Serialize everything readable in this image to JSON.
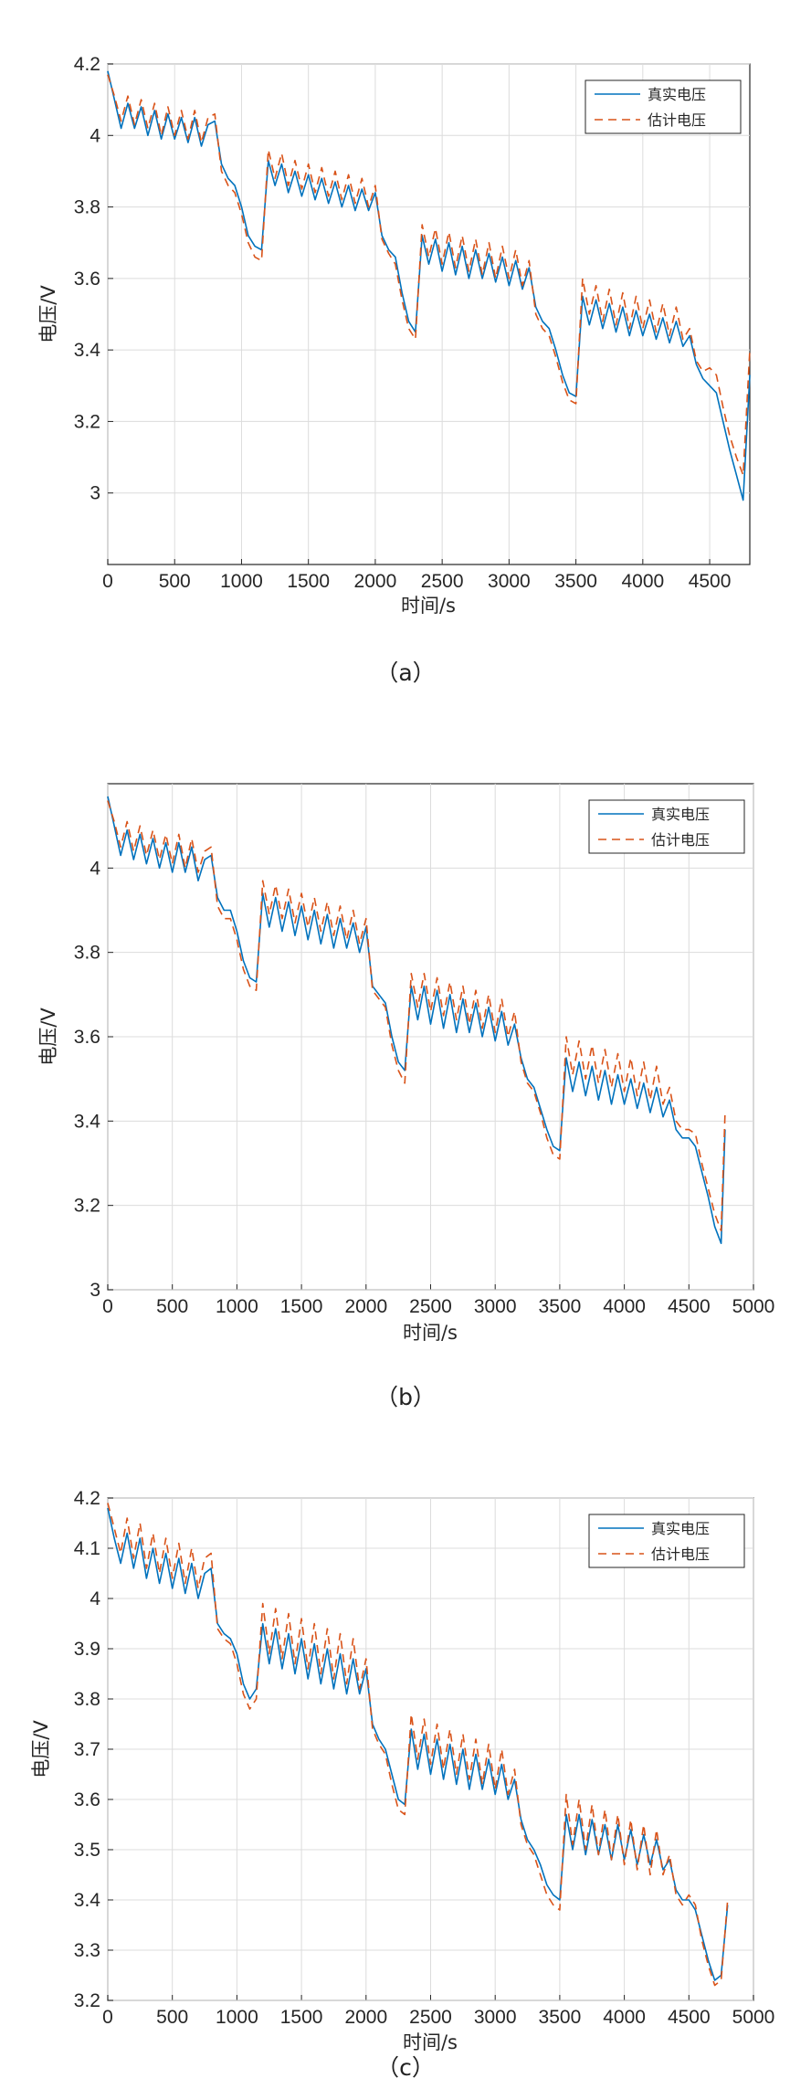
{
  "colors": {
    "real": "#0072bd",
    "est": "#d95319"
  },
  "chart_data": [
    {
      "type": "line",
      "panel": "a",
      "caption": "（a）",
      "xlabel": "时间/s",
      "ylabel": "电压/V",
      "xlim": [
        0,
        4800
      ],
      "ylim": [
        2.8,
        4.2
      ],
      "xticks": [
        0,
        500,
        1000,
        1500,
        2000,
        2500,
        3000,
        3500,
        4000,
        4500
      ],
      "yticks": [
        3,
        3.2,
        3.4,
        3.6,
        3.8,
        4,
        4.2
      ],
      "ytick_labels": [
        "3",
        "3.2",
        "3.4",
        "3.6",
        "3.8",
        "4",
        "4.2"
      ],
      "legend_position": "top-right",
      "x": [
        0,
        50,
        100,
        150,
        200,
        250,
        300,
        350,
        400,
        450,
        500,
        550,
        600,
        650,
        700,
        750,
        800,
        850,
        900,
        950,
        1000,
        1050,
        1100,
        1150,
        1200,
        1250,
        1300,
        1350,
        1400,
        1450,
        1500,
        1550,
        1600,
        1650,
        1700,
        1750,
        1800,
        1850,
        1900,
        1950,
        2000,
        2050,
        2100,
        2150,
        2200,
        2250,
        2300,
        2350,
        2400,
        2450,
        2500,
        2550,
        2600,
        2650,
        2700,
        2750,
        2800,
        2850,
        2900,
        2950,
        3000,
        3050,
        3100,
        3150,
        3200,
        3250,
        3300,
        3350,
        3400,
        3450,
        3500,
        3550,
        3600,
        3650,
        3700,
        3750,
        3800,
        3850,
        3900,
        3950,
        4000,
        4050,
        4100,
        4150,
        4200,
        4250,
        4300,
        4350,
        4400,
        4450,
        4500,
        4550,
        4600,
        4650,
        4700,
        4750,
        4800
      ],
      "series": [
        {
          "name": "真实电压",
          "style": "solid",
          "values": [
            4.18,
            4.1,
            4.02,
            4.09,
            4.02,
            4.08,
            4.0,
            4.07,
            3.99,
            4.06,
            3.99,
            4.05,
            3.98,
            4.05,
            3.97,
            4.03,
            4.04,
            3.92,
            3.88,
            3.86,
            3.8,
            3.72,
            3.69,
            3.68,
            3.93,
            3.86,
            3.92,
            3.84,
            3.9,
            3.83,
            3.89,
            3.82,
            3.88,
            3.81,
            3.87,
            3.8,
            3.86,
            3.79,
            3.85,
            3.79,
            3.84,
            3.72,
            3.68,
            3.66,
            3.56,
            3.48,
            3.45,
            3.72,
            3.64,
            3.71,
            3.62,
            3.7,
            3.61,
            3.69,
            3.6,
            3.68,
            3.6,
            3.67,
            3.59,
            3.66,
            3.58,
            3.65,
            3.57,
            3.63,
            3.52,
            3.48,
            3.46,
            3.4,
            3.33,
            3.28,
            3.27,
            3.55,
            3.47,
            3.54,
            3.46,
            3.53,
            3.45,
            3.52,
            3.44,
            3.51,
            3.44,
            3.5,
            3.43,
            3.49,
            3.42,
            3.48,
            3.41,
            3.44,
            3.36,
            3.32,
            3.3,
            3.28,
            3.2,
            3.12,
            3.05,
            2.98,
            3.33
          ]
        },
        {
          "name": "估计电压",
          "style": "dashed",
          "values": [
            4.17,
            4.11,
            4.04,
            4.11,
            4.03,
            4.1,
            4.02,
            4.09,
            4.0,
            4.08,
            4.0,
            4.07,
            3.99,
            4.07,
            3.98,
            4.05,
            4.06,
            3.9,
            3.86,
            3.84,
            3.78,
            3.7,
            3.66,
            3.65,
            3.96,
            3.88,
            3.95,
            3.86,
            3.93,
            3.85,
            3.92,
            3.84,
            3.91,
            3.83,
            3.9,
            3.82,
            3.89,
            3.81,
            3.88,
            3.8,
            3.86,
            3.71,
            3.67,
            3.64,
            3.54,
            3.46,
            3.43,
            3.75,
            3.66,
            3.74,
            3.64,
            3.73,
            3.63,
            3.72,
            3.62,
            3.71,
            3.61,
            3.7,
            3.6,
            3.69,
            3.6,
            3.68,
            3.58,
            3.65,
            3.5,
            3.46,
            3.44,
            3.38,
            3.31,
            3.26,
            3.25,
            3.6,
            3.5,
            3.58,
            3.48,
            3.57,
            3.47,
            3.56,
            3.46,
            3.55,
            3.46,
            3.54,
            3.45,
            3.53,
            3.44,
            3.52,
            3.43,
            3.46,
            3.37,
            3.34,
            3.35,
            3.33,
            3.24,
            3.16,
            3.1,
            3.05,
            3.4
          ]
        }
      ]
    },
    {
      "type": "line",
      "panel": "b",
      "caption": "（b）",
      "xlabel": "时间/s",
      "ylabel": "电压/V",
      "xlim": [
        0,
        5000
      ],
      "ylim": [
        3.0,
        4.2
      ],
      "xticks": [
        0,
        500,
        1000,
        1500,
        2000,
        2500,
        3000,
        3500,
        4000,
        4500,
        5000
      ],
      "yticks": [
        3,
        3.2,
        3.4,
        3.6,
        3.8,
        4
      ],
      "ytick_labels": [
        "3",
        "3.2",
        "3.4",
        "3.6",
        "3.8",
        "4"
      ],
      "legend_position": "top-right",
      "x": [
        0,
        50,
        100,
        150,
        200,
        250,
        300,
        350,
        400,
        450,
        500,
        550,
        600,
        650,
        700,
        750,
        800,
        850,
        900,
        950,
        1000,
        1050,
        1100,
        1150,
        1200,
        1250,
        1300,
        1350,
        1400,
        1450,
        1500,
        1550,
        1600,
        1650,
        1700,
        1750,
        1800,
        1850,
        1900,
        1950,
        2000,
        2050,
        2100,
        2150,
        2200,
        2250,
        2300,
        2350,
        2400,
        2450,
        2500,
        2550,
        2600,
        2650,
        2700,
        2750,
        2800,
        2850,
        2900,
        2950,
        3000,
        3050,
        3100,
        3150,
        3200,
        3250,
        3300,
        3350,
        3400,
        3450,
        3500,
        3550,
        3600,
        3650,
        3700,
        3750,
        3800,
        3850,
        3900,
        3950,
        4000,
        4050,
        4100,
        4150,
        4200,
        4250,
        4300,
        4350,
        4400,
        4450,
        4500,
        4550,
        4600,
        4650,
        4700,
        4750,
        4780
      ],
      "series": [
        {
          "name": "真实电压",
          "style": "solid",
          "values": [
            4.17,
            4.1,
            4.03,
            4.09,
            4.02,
            4.08,
            4.01,
            4.07,
            4.0,
            4.06,
            3.99,
            4.06,
            3.99,
            4.05,
            3.97,
            4.02,
            4.03,
            3.93,
            3.9,
            3.9,
            3.85,
            3.78,
            3.74,
            3.73,
            3.94,
            3.86,
            3.93,
            3.85,
            3.92,
            3.84,
            3.91,
            3.83,
            3.9,
            3.82,
            3.89,
            3.81,
            3.88,
            3.81,
            3.87,
            3.8,
            3.86,
            3.72,
            3.7,
            3.68,
            3.6,
            3.54,
            3.52,
            3.72,
            3.64,
            3.72,
            3.63,
            3.71,
            3.62,
            3.7,
            3.61,
            3.69,
            3.61,
            3.68,
            3.6,
            3.67,
            3.59,
            3.66,
            3.58,
            3.63,
            3.55,
            3.5,
            3.48,
            3.43,
            3.38,
            3.34,
            3.33,
            3.55,
            3.47,
            3.54,
            3.46,
            3.53,
            3.45,
            3.52,
            3.44,
            3.51,
            3.44,
            3.5,
            3.43,
            3.49,
            3.42,
            3.48,
            3.41,
            3.45,
            3.38,
            3.36,
            3.36,
            3.34,
            3.28,
            3.22,
            3.15,
            3.11,
            3.38
          ]
        },
        {
          "name": "估计电压",
          "style": "dashed",
          "values": [
            4.16,
            4.11,
            4.05,
            4.11,
            4.04,
            4.1,
            4.03,
            4.09,
            4.02,
            4.08,
            4.01,
            4.08,
            4.0,
            4.07,
            3.99,
            4.04,
            4.05,
            3.91,
            3.88,
            3.88,
            3.83,
            3.76,
            3.72,
            3.71,
            3.97,
            3.89,
            3.96,
            3.88,
            3.95,
            3.87,
            3.94,
            3.86,
            3.93,
            3.85,
            3.92,
            3.84,
            3.91,
            3.83,
            3.9,
            3.82,
            3.88,
            3.71,
            3.69,
            3.67,
            3.58,
            3.52,
            3.49,
            3.75,
            3.67,
            3.75,
            3.66,
            3.74,
            3.65,
            3.73,
            3.64,
            3.72,
            3.63,
            3.71,
            3.62,
            3.7,
            3.61,
            3.69,
            3.6,
            3.66,
            3.54,
            3.49,
            3.47,
            3.42,
            3.36,
            3.32,
            3.31,
            3.6,
            3.51,
            3.59,
            3.5,
            3.58,
            3.49,
            3.57,
            3.48,
            3.56,
            3.47,
            3.55,
            3.46,
            3.54,
            3.45,
            3.53,
            3.44,
            3.48,
            3.4,
            3.38,
            3.38,
            3.37,
            3.3,
            3.24,
            3.18,
            3.14,
            3.42
          ]
        }
      ]
    },
    {
      "type": "line",
      "panel": "c",
      "caption": "（c）",
      "xlabel": "时间/s",
      "ylabel": "电压/V",
      "xlim": [
        0,
        5000
      ],
      "ylim": [
        3.2,
        4.2
      ],
      "xticks": [
        0,
        500,
        1000,
        1500,
        2000,
        2500,
        3000,
        3500,
        4000,
        4500,
        5000
      ],
      "yticks": [
        3.2,
        3.3,
        3.4,
        3.5,
        3.6,
        3.7,
        3.8,
        3.9,
        4.0,
        4.1,
        4.2
      ],
      "ytick_labels": [
        "3.2",
        "3.3",
        "3.4",
        "3.5",
        "3.6",
        "3.7",
        "3.8",
        "3.9",
        "4",
        "4.1",
        "4.2"
      ],
      "legend_position": "top-right",
      "x": [
        0,
        50,
        100,
        150,
        200,
        250,
        300,
        350,
        400,
        450,
        500,
        550,
        600,
        650,
        700,
        750,
        800,
        850,
        900,
        950,
        1000,
        1050,
        1100,
        1150,
        1200,
        1250,
        1300,
        1350,
        1400,
        1450,
        1500,
        1550,
        1600,
        1650,
        1700,
        1750,
        1800,
        1850,
        1900,
        1950,
        2000,
        2050,
        2100,
        2150,
        2200,
        2250,
        2300,
        2350,
        2400,
        2450,
        2500,
        2550,
        2600,
        2650,
        2700,
        2750,
        2800,
        2850,
        2900,
        2950,
        3000,
        3050,
        3100,
        3150,
        3200,
        3250,
        3300,
        3350,
        3400,
        3450,
        3500,
        3550,
        3600,
        3650,
        3700,
        3750,
        3800,
        3850,
        3900,
        3950,
        4000,
        4050,
        4100,
        4150,
        4200,
        4250,
        4300,
        4350,
        4400,
        4450,
        4500,
        4550,
        4600,
        4650,
        4700,
        4750,
        4800
      ],
      "series": [
        {
          "name": "真实电压",
          "style": "solid",
          "values": [
            4.18,
            4.12,
            4.07,
            4.13,
            4.06,
            4.12,
            4.04,
            4.1,
            4.03,
            4.09,
            4.02,
            4.08,
            4.01,
            4.07,
            4.0,
            4.05,
            4.06,
            3.95,
            3.93,
            3.92,
            3.89,
            3.83,
            3.8,
            3.82,
            3.95,
            3.87,
            3.94,
            3.86,
            3.93,
            3.85,
            3.92,
            3.84,
            3.91,
            3.83,
            3.9,
            3.82,
            3.89,
            3.81,
            3.88,
            3.81,
            3.86,
            3.75,
            3.72,
            3.7,
            3.65,
            3.6,
            3.59,
            3.74,
            3.66,
            3.73,
            3.65,
            3.72,
            3.64,
            3.71,
            3.63,
            3.7,
            3.62,
            3.69,
            3.62,
            3.68,
            3.61,
            3.67,
            3.6,
            3.64,
            3.56,
            3.52,
            3.5,
            3.47,
            3.43,
            3.41,
            3.4,
            3.57,
            3.5,
            3.57,
            3.49,
            3.56,
            3.49,
            3.55,
            3.48,
            3.55,
            3.48,
            3.54,
            3.47,
            3.53,
            3.47,
            3.52,
            3.46,
            3.48,
            3.42,
            3.4,
            3.4,
            3.38,
            3.33,
            3.28,
            3.24,
            3.25,
            3.39
          ]
        },
        {
          "name": "估计电压",
          "style": "dashed",
          "values": [
            4.19,
            4.14,
            4.09,
            4.16,
            4.08,
            4.15,
            4.06,
            4.13,
            4.05,
            4.12,
            4.04,
            4.11,
            4.03,
            4.1,
            4.02,
            4.08,
            4.09,
            3.94,
            3.92,
            3.91,
            3.87,
            3.81,
            3.78,
            3.8,
            3.99,
            3.89,
            3.98,
            3.88,
            3.97,
            3.87,
            3.96,
            3.86,
            3.95,
            3.85,
            3.94,
            3.84,
            3.93,
            3.83,
            3.92,
            3.82,
            3.88,
            3.74,
            3.71,
            3.69,
            3.63,
            3.58,
            3.57,
            3.77,
            3.68,
            3.76,
            3.67,
            3.75,
            3.66,
            3.74,
            3.65,
            3.73,
            3.64,
            3.72,
            3.63,
            3.71,
            3.62,
            3.7,
            3.61,
            3.66,
            3.55,
            3.51,
            3.49,
            3.45,
            3.41,
            3.39,
            3.38,
            3.61,
            3.51,
            3.6,
            3.5,
            3.59,
            3.49,
            3.58,
            3.48,
            3.57,
            3.47,
            3.56,
            3.46,
            3.55,
            3.45,
            3.54,
            3.45,
            3.49,
            3.41,
            3.39,
            3.41,
            3.39,
            3.32,
            3.27,
            3.23,
            3.24,
            3.4
          ]
        }
      ]
    }
  ]
}
